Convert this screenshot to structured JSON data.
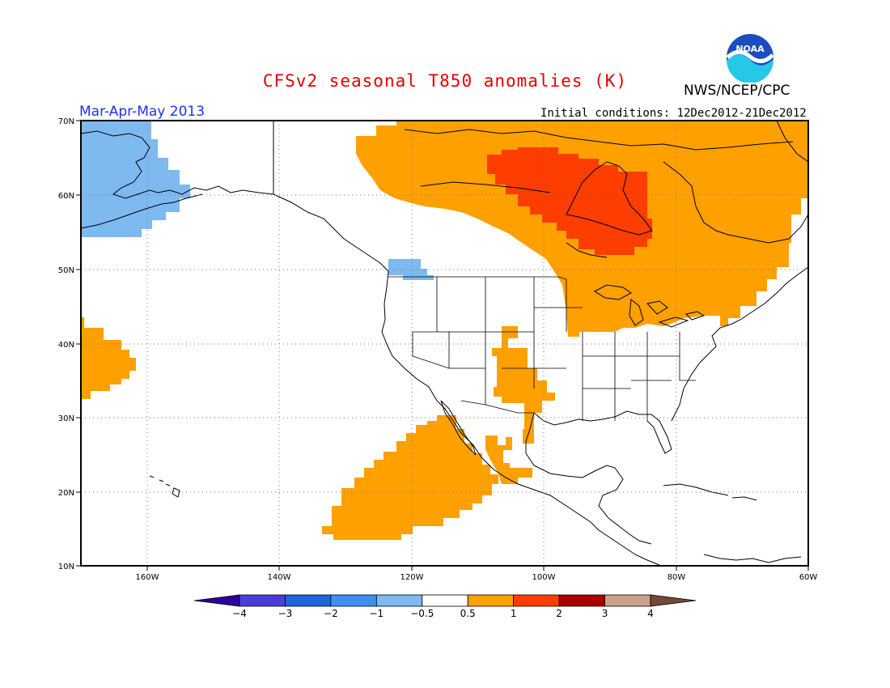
{
  "title": "CFSv2 seasonal T850 anomalies (K)",
  "organization": "NWS/NCEP/CPC",
  "logo_text": "NOAA",
  "season": "Mar-Apr-May 2013",
  "initial_conditions": "Initial conditions: 12Dec2012-21Dec2012",
  "map": {
    "lon_range": [
      -172,
      -62
    ],
    "lat_range": [
      10,
      70
    ],
    "lat_labels": [
      "70N",
      "60N",
      "50N",
      "40N",
      "30N",
      "20N",
      "10N"
    ],
    "lon_labels": [
      "160W",
      "140W",
      "120W",
      "100W",
      "80W",
      "60W"
    ]
  },
  "colorbar": {
    "labels": [
      "-4",
      "-3",
      "-2",
      "-1",
      "-0.5",
      "0.5",
      "1",
      "2",
      "3",
      "4"
    ],
    "colors": [
      "#2a00a0",
      "#4b3ed6",
      "#1f66d8",
      "#3d8ff2",
      "#7eb9f0",
      "#ffffff",
      "#fda000",
      "#fe3d00",
      "#a60000",
      "#c8a08c",
      "#73483a"
    ]
  },
  "anomaly_regions": [
    {
      "name": "alaska-negative",
      "class": "-1 to -0.5",
      "color": "#7eb9f0"
    },
    {
      "name": "pacific-northwest-negative",
      "class": "-1 to -0.5",
      "color": "#7eb9f0"
    },
    {
      "name": "canada-positive",
      "class": "0.5 to 1",
      "color": "#fda000"
    },
    {
      "name": "hudson-bay-positive",
      "class": "1 to 2",
      "color": "#fe3d00"
    },
    {
      "name": "southern-plains-positive",
      "class": "0.5 to 1",
      "color": "#fda000"
    },
    {
      "name": "mexico-pacific-positive",
      "class": "0.5 to 1",
      "color": "#fda000"
    },
    {
      "name": "central-pacific-positive",
      "class": "0.5 to 1",
      "color": "#fda000"
    }
  ]
}
